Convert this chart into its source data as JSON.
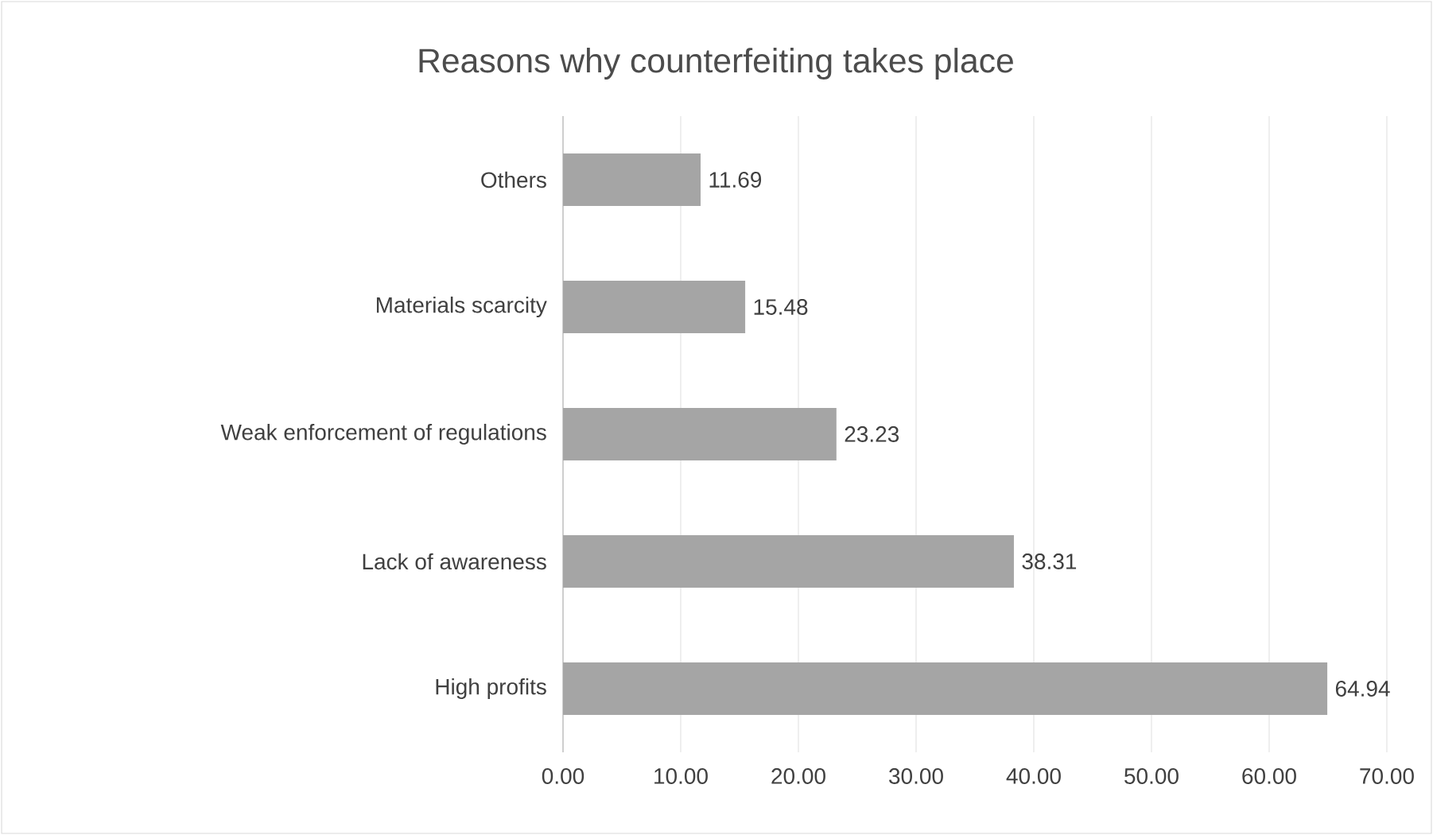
{
  "chart_data": {
    "type": "bar",
    "orientation": "horizontal",
    "title": "Reasons why counterfeiting takes place",
    "categories": [
      "Others",
      "Materials scarcity",
      "Weak enforcement of regulations",
      "Lack of awareness",
      "High profits"
    ],
    "values": [
      11.69,
      15.48,
      23.23,
      38.31,
      64.94
    ],
    "color": "#a5a5a5",
    "xlim": [
      0,
      70
    ],
    "xticks": [
      {
        "value": 0,
        "label": "0.00"
      },
      {
        "value": 10,
        "label": "10.00"
      },
      {
        "value": 20,
        "label": "20.00"
      },
      {
        "value": 30,
        "label": "30.00"
      },
      {
        "value": 40,
        "label": "40.00"
      },
      {
        "value": 50,
        "label": "50.00"
      },
      {
        "value": 60,
        "label": "60.00"
      },
      {
        "value": 70,
        "label": "70.00"
      }
    ],
    "grid": "x",
    "data_labels": true
  }
}
